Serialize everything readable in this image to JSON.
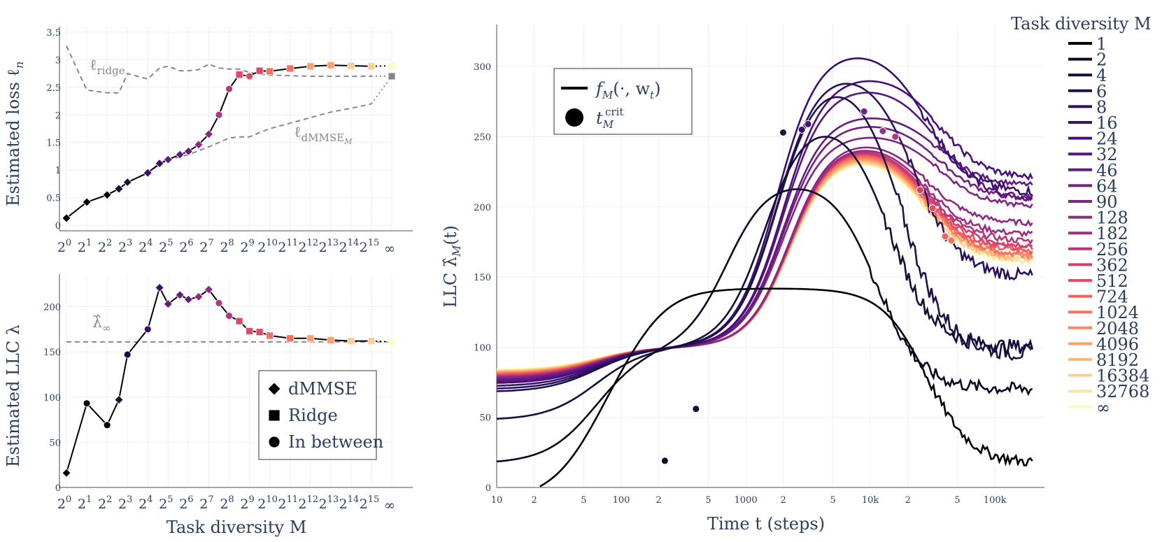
{
  "chart_data": [
    {
      "id": "loss",
      "type": "line",
      "ylabel": "Estimated loss ℓ",
      "ylabel_sub": "n",
      "ylim": [
        -0.1,
        3.6
      ],
      "yticks": [
        "0",
        "0.5",
        "1",
        "1.5",
        "2",
        "2.5",
        "3",
        "3.5"
      ],
      "categories": [
        "2",
        "2",
        "2",
        "2",
        "2",
        "2",
        "2",
        "2",
        "2",
        "2",
        "2",
        "2",
        "2",
        "2",
        "2",
        "2",
        "∞"
      ],
      "category_exponents": [
        "0",
        "1",
        "2",
        "3",
        "4",
        "5",
        "6",
        "7",
        "8",
        "9",
        "10",
        "11",
        "12",
        "13",
        "14",
        "15",
        ""
      ],
      "series": [
        {
          "name": "model",
          "x": [
            0,
            1,
            2,
            2.58,
            3,
            4,
            4.58,
            5,
            5.58,
            6,
            6.5,
            7,
            7.5,
            8,
            8.5,
            9,
            9.5,
            10,
            11,
            12,
            13,
            14,
            15,
            16
          ],
          "values": [
            0.13,
            0.42,
            0.55,
            0.66,
            0.78,
            0.95,
            1.12,
            1.19,
            1.28,
            1.34,
            1.46,
            1.65,
            2.0,
            2.47,
            2.73,
            2.7,
            2.8,
            2.79,
            2.84,
            2.88,
            2.9,
            2.89,
            2.88,
            2.89
          ],
          "markers": [
            "diamond",
            "diamond",
            "diamond",
            "diamond",
            "diamond",
            "diamond",
            "diamond",
            "diamond",
            "diamond",
            "diamond",
            "diamond",
            "diamond",
            "circle",
            "circle",
            "square",
            "circle",
            "square",
            "square",
            "square",
            "square",
            "square",
            "square",
            "square",
            "square"
          ]
        },
        {
          "name": "ridge",
          "x": [
            0,
            1,
            2,
            2.58,
            3,
            4,
            4.58,
            5,
            5.58,
            6,
            6.5,
            7,
            7.5,
            8,
            8.5,
            9,
            9.5,
            10,
            11,
            12,
            13,
            14,
            15,
            16
          ],
          "values": [
            3.25,
            2.45,
            2.4,
            2.4,
            2.75,
            2.65,
            2.85,
            2.88,
            2.8,
            2.8,
            2.82,
            2.92,
            2.85,
            2.83,
            2.83,
            2.77,
            2.74,
            2.72,
            2.71,
            2.7,
            2.7,
            2.7,
            2.7,
            2.7
          ]
        },
        {
          "name": "dmmse",
          "x": [
            0,
            1,
            2,
            2.58,
            3,
            4,
            4.58,
            5,
            5.58,
            6,
            6.5,
            7,
            7.5,
            8,
            8.5,
            9,
            9.5,
            10,
            11,
            12,
            13,
            14,
            15,
            16
          ],
          "values": [
            0.13,
            0.42,
            0.55,
            0.66,
            0.78,
            0.95,
            1.1,
            1.18,
            1.24,
            1.28,
            1.35,
            1.42,
            1.5,
            1.58,
            1.6,
            1.6,
            1.68,
            1.75,
            1.85,
            1.95,
            2.05,
            2.12,
            2.2,
            2.7
          ]
        }
      ],
      "annotations": {
        "ridge": "ℓ",
        "ridge_sub": "ridge",
        "dmmse": "ℓ",
        "dmmse_sub": "dMMSE",
        "dmmse_subsub": "M"
      }
    },
    {
      "id": "llc",
      "type": "line",
      "ylabel": "Estimated LLC λ",
      "xlabel": "Task diversity M",
      "ylim": [
        0,
        236
      ],
      "yticks": [
        "0",
        "50",
        "100",
        "150",
        "200"
      ],
      "hline": 161,
      "hline_label": "λ̂",
      "hline_sub": "∞",
      "x": [
        0,
        1,
        2,
        2.58,
        3,
        4,
        4.58,
        5,
        5.58,
        6,
        6.5,
        7,
        7.5,
        8,
        8.5,
        9,
        9.5,
        10,
        11,
        12,
        13,
        14,
        15,
        16
      ],
      "values": [
        16,
        93,
        69,
        97,
        147,
        175,
        221,
        203,
        213,
        208,
        211,
        219,
        204,
        190,
        184,
        173,
        172,
        168,
        165,
        165,
        163,
        162,
        162,
        161
      ],
      "markers": [
        "diamond",
        "circle",
        "circle",
        "diamond",
        "circle",
        "circle",
        "diamond",
        "diamond",
        "diamond",
        "diamond",
        "diamond",
        "diamond",
        "circle",
        "circle",
        "square",
        "square",
        "square",
        "square",
        "square",
        "square",
        "square",
        "square",
        "square",
        "square"
      ],
      "legend": [
        {
          "marker": "diamond",
          "label": "dMMSE"
        },
        {
          "marker": "square",
          "label": "Ridge"
        },
        {
          "marker": "circle",
          "label": "In between"
        }
      ]
    },
    {
      "id": "traj",
      "type": "line",
      "xlabel": "Time t (steps)",
      "ylabel": "LLC λ̂",
      "ylabel_sub": "M",
      "ylabel_suffix": "(t)",
      "xscale": "log",
      "xlim": [
        10,
        250000
      ],
      "ylim": [
        0,
        330
      ],
      "yticks": [
        "0",
        "50",
        "100",
        "150",
        "200",
        "250",
        "300"
      ],
      "xticks": [
        {
          "v": 10,
          "t": "10"
        },
        {
          "v": 20,
          "t": "2"
        },
        {
          "v": 50,
          "t": "5"
        },
        {
          "v": 100,
          "t": "100"
        },
        {
          "v": 200,
          "t": "2"
        },
        {
          "v": 500,
          "t": "5"
        },
        {
          "v": 1000,
          "t": "1000"
        },
        {
          "v": 2000,
          "t": "2"
        },
        {
          "v": 5000,
          "t": "5"
        },
        {
          "v": 10000,
          "t": "10k"
        },
        {
          "v": 20000,
          "t": "2"
        },
        {
          "v": 50000,
          "t": "5"
        },
        {
          "v": 100000,
          "t": "100k"
        }
      ],
      "legend_title": "Task diversity M",
      "inner_legend": [
        {
          "marker": "line",
          "label": "f",
          "sub": "M",
          "args": "(·, w",
          "args_sub": "t",
          "args_end": ")"
        },
        {
          "marker": "circle",
          "label": "t",
          "sub": "M",
          "sup": "crit"
        }
      ],
      "series": [
        {
          "name": "1",
          "color": "#000004",
          "start": -10,
          "rise": 1.9,
          "peak": 142,
          "peakT": 4.2,
          "fallT": 4.4,
          "final": 17
        },
        {
          "name": "2",
          "color": "#0b0924",
          "start": 17,
          "rise": 2.6,
          "peak": 221,
          "peakT": 3.5,
          "fallT": 4.0,
          "final": 70
        },
        {
          "name": "4",
          "color": "#150e37",
          "start": 48,
          "rise": 2.9,
          "peak": 268,
          "peakT": 3.5,
          "fallT": 4.1,
          "final": 100
        },
        {
          "name": "6",
          "color": "#20114b",
          "start": 68,
          "rise": 3.0,
          "peak": 300,
          "peakT": 3.7,
          "fallT": 4.2,
          "final": 95
        },
        {
          "name": "8",
          "color": "#2c115f",
          "start": 70,
          "rise": 3.0,
          "peak": 302,
          "peakT": 3.9,
          "fallT": 4.3,
          "final": 150
        },
        {
          "name": "16",
          "color": "#3b0f70",
          "start": 72,
          "rise": 3.0,
          "peak": 315,
          "peakT": 3.95,
          "fallT": 4.4,
          "final": 210
        },
        {
          "name": "24",
          "color": "#4a1079",
          "start": 74,
          "rise": 3.05,
          "peak": 296,
          "peakT": 4.0,
          "fallT": 4.5,
          "final": 220
        },
        {
          "name": "32",
          "color": "#59157e",
          "start": 75,
          "rise": 3.05,
          "peak": 288,
          "peakT": 3.9,
          "fallT": 4.5,
          "final": 205
        },
        {
          "name": "46",
          "color": "#641a80",
          "start": 76,
          "rise": 3.05,
          "peak": 268,
          "peakT": 3.85,
          "fallT": 4.5,
          "final": 215
        },
        {
          "name": "64",
          "color": "#721f81",
          "start": 77,
          "rise": 3.05,
          "peak": 262,
          "peakT": 3.85,
          "fallT": 4.5,
          "final": 205
        },
        {
          "name": "90",
          "color": "#802582",
          "start": 77,
          "rise": 3.05,
          "peak": 254,
          "peakT": 3.85,
          "fallT": 4.5,
          "final": 200
        },
        {
          "name": "128",
          "color": "#8c2981",
          "start": 78,
          "rise": 3.1,
          "peak": 250,
          "peakT": 3.8,
          "fallT": 4.4,
          "final": 188
        },
        {
          "name": "182",
          "color": "#9b2e7f",
          "start": 78,
          "rise": 3.1,
          "peak": 248,
          "peakT": 3.8,
          "fallT": 4.4,
          "final": 180
        },
        {
          "name": "256",
          "color": "#b5367a",
          "start": 79,
          "rise": 3.1,
          "peak": 247,
          "peakT": 3.8,
          "fallT": 4.4,
          "final": 175
        },
        {
          "name": "362",
          "color": "#cf4071",
          "start": 79,
          "rise": 3.1,
          "peak": 246,
          "peakT": 3.8,
          "fallT": 4.4,
          "final": 172
        },
        {
          "name": "512",
          "color": "#e34e65",
          "start": 80,
          "rise": 3.1,
          "peak": 246,
          "peakT": 3.8,
          "fallT": 4.4,
          "final": 170
        },
        {
          "name": "724",
          "color": "#f1605d",
          "start": 80,
          "rise": 3.1,
          "peak": 245,
          "peakT": 3.8,
          "fallT": 4.4,
          "final": 168
        },
        {
          "name": "1024",
          "color": "#f7705c",
          "start": 81,
          "rise": 3.1,
          "peak": 244,
          "peakT": 3.8,
          "fallT": 4.4,
          "final": 166
        },
        {
          "name": "2048",
          "color": "#fb8861",
          "start": 81,
          "rise": 3.1,
          "peak": 243,
          "peakT": 3.8,
          "fallT": 4.4,
          "final": 165
        },
        {
          "name": "4096",
          "color": "#fea16e",
          "start": 82,
          "rise": 3.1,
          "peak": 242,
          "peakT": 3.8,
          "fallT": 4.4,
          "final": 164
        },
        {
          "name": "8192",
          "color": "#feb47b",
          "start": 82,
          "rise": 3.1,
          "peak": 241,
          "peakT": 3.8,
          "fallT": 4.4,
          "final": 163
        },
        {
          "name": "16384",
          "color": "#fecf92",
          "start": 83,
          "rise": 3.1,
          "peak": 240,
          "peakT": 3.8,
          "fallT": 4.4,
          "final": 162
        },
        {
          "name": "32768",
          "color": "#fde3a5",
          "start": 83,
          "rise": 3.1,
          "peak": 239,
          "peakT": 3.8,
          "fallT": 4.4,
          "final": 161
        },
        {
          "name": "∞",
          "color": "#fcfdbf",
          "start": 84,
          "rise": 3.1,
          "peak": 238,
          "peakT": 3.8,
          "fallT": 4.4,
          "final": 160
        }
      ]
    }
  ]
}
